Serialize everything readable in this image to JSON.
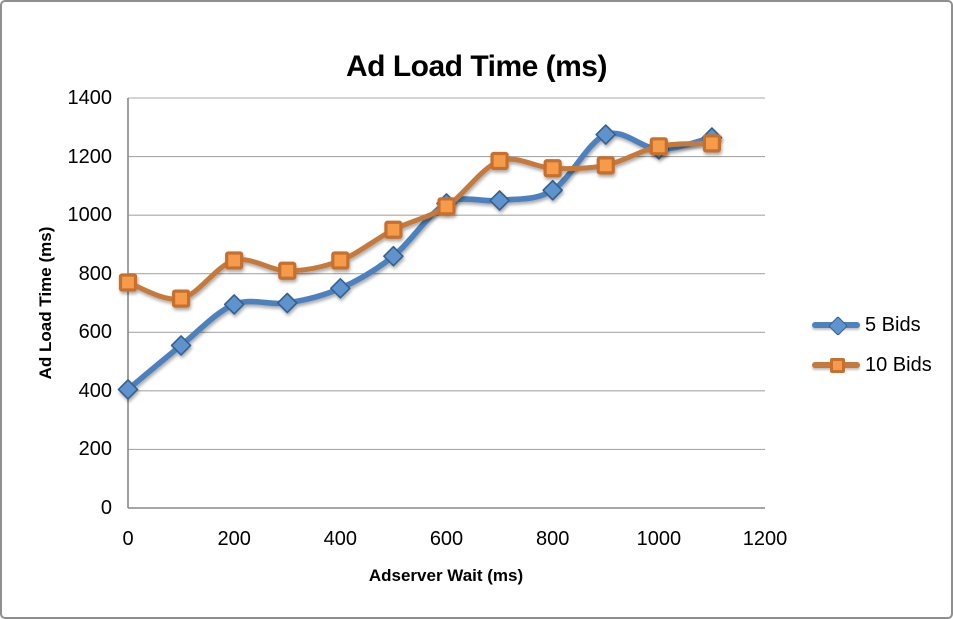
{
  "chart": {
    "title": "Ad Load Time (ms)",
    "x_axis_label": "Adserver Wait (ms)",
    "y_axis_label": "Ad Load Time (ms)"
  },
  "legend": {
    "items": [
      "5 Bids",
      "10 Bids"
    ]
  },
  "chart_data": {
    "type": "line",
    "title": "Ad Load Time (ms)",
    "xlabel": "Adserver Wait (ms)",
    "ylabel": "Ad Load Time (ms)",
    "x": [
      0,
      100,
      200,
      300,
      400,
      500,
      600,
      700,
      800,
      900,
      1000,
      1100
    ],
    "series": [
      {
        "name": "5 Bids",
        "marker": "diamond",
        "line_color": "#4E81BD",
        "marker_fill": "#5F93CE",
        "marker_stroke": "#36608E",
        "values": [
          405,
          555,
          695,
          700,
          750,
          860,
          1040,
          1050,
          1085,
          1275,
          1225,
          1265
        ]
      },
      {
        "name": "10 Bids",
        "marker": "square",
        "line_color": "#C5793B",
        "marker_fill": "#F59B49",
        "marker_stroke": "#C76F2E",
        "values": [
          770,
          715,
          845,
          810,
          845,
          950,
          1030,
          1185,
          1160,
          1170,
          1235,
          1245
        ]
      }
    ],
    "xlim": [
      0,
      1200
    ],
    "ylim": [
      0,
      1400
    ],
    "x_ticks": [
      0,
      200,
      400,
      600,
      800,
      1000,
      1200
    ],
    "y_ticks": [
      0,
      200,
      400,
      600,
      800,
      1000,
      1200,
      1400
    ],
    "grid": "horizontal-only",
    "legend_position": "right-middle",
    "smoothed_lines": true
  },
  "colors": {
    "background": "#FFFFFF",
    "chart_border": "#8F8F8F",
    "grid_line": "#A9A9A9",
    "axis_line": "#898989",
    "text": "#000000"
  }
}
